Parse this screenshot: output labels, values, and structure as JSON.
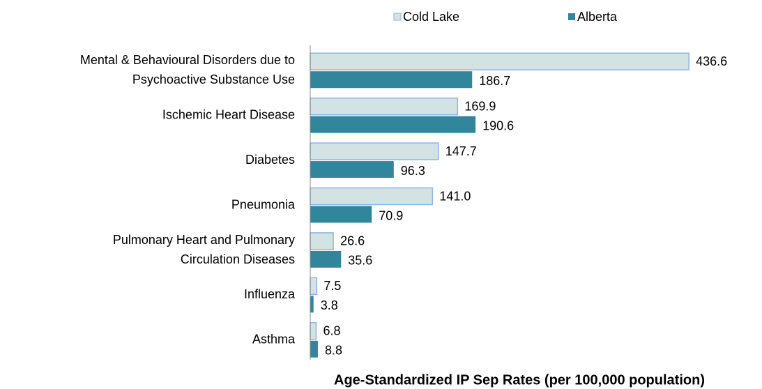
{
  "chart_data": {
    "type": "hbar",
    "x_label": "Age-Standardized IP Sep Rates (per 100,000 population)",
    "categories": [
      "Mental & Behavioural Disorders due to\nPsychoactive Substance Use",
      "Ischemic Heart Disease",
      "Diabetes",
      "Pneumonia",
      "Pulmonary Heart and Pulmonary\nCirculation Diseases",
      "Influenza",
      "Asthma"
    ],
    "series": [
      {
        "name": "Cold Lake",
        "color": "#d3e3e3",
        "stroke": "#8eb4e3",
        "values": [
          436.6,
          169.9,
          147.7,
          141.0,
          26.6,
          7.5,
          6.8
        ],
        "value_labels": [
          "436.6",
          "169.9",
          "147.7",
          "141.0",
          "26.6",
          "7.5",
          "6.8"
        ]
      },
      {
        "name": "Alberta",
        "color": "#31869b",
        "values": [
          186.7,
          190.6,
          96.3,
          70.9,
          35.6,
          3.8,
          8.8
        ],
        "value_labels": [
          "186.7",
          "190.6",
          "96.3",
          "70.9",
          "35.6",
          "3.8",
          "8.8"
        ]
      }
    ],
    "xlim": [
      0,
      500
    ],
    "legend": "top"
  }
}
